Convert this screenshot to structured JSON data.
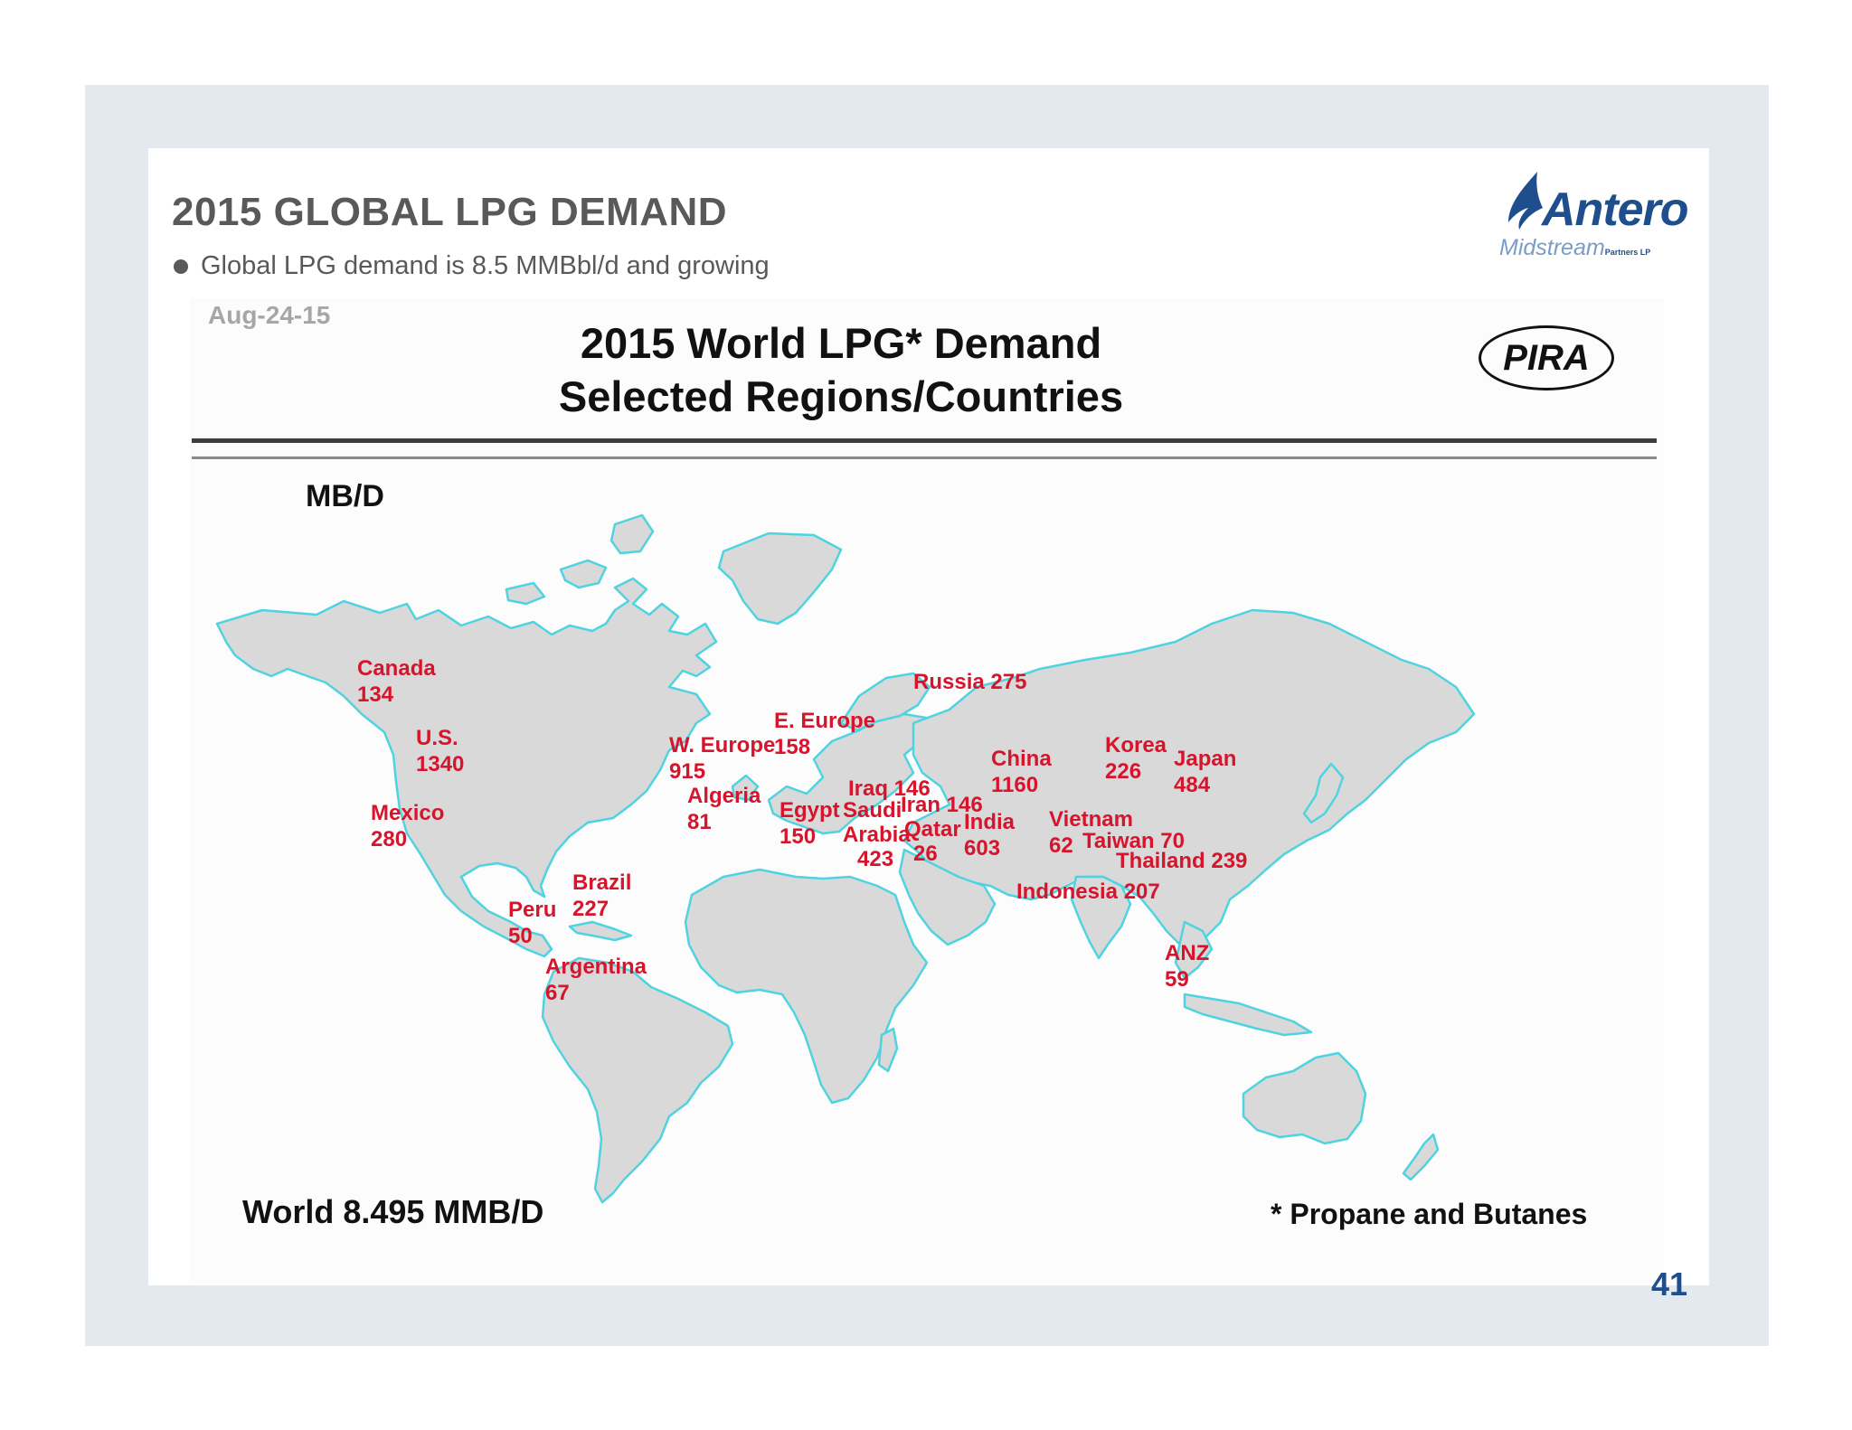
{
  "slide": {
    "title": "2015 GLOBAL LPG DEMAND",
    "bullet": "Global LPG demand is 8.5 MMBbl/d and growing",
    "page_number": "41"
  },
  "logo": {
    "name": "Antero",
    "sub": "Midstream",
    "sub_small": "Partners LP"
  },
  "map": {
    "date": "Aug-24-15",
    "title_line1": "2015 World LPG* Demand",
    "title_line2": "Selected Regions/Countries",
    "source_badge": "PIRA",
    "unit": "MB/D",
    "world_total": "World 8.495 MMB/D",
    "footnote": "* Propane and Butanes",
    "label_color": "#d6152d",
    "land_color": "#d9d9d9",
    "coast_color": "#4fd3e0",
    "labels": [
      {
        "id": "canada",
        "line1": "Canada",
        "line2": "134"
      },
      {
        "id": "us",
        "line1": "U.S.",
        "line2": "1340"
      },
      {
        "id": "mexico",
        "line1": "Mexico",
        "line2": "280"
      },
      {
        "id": "brazil",
        "line1": "Brazil",
        "line2": "227"
      },
      {
        "id": "peru",
        "line1": "Peru",
        "line2": "50"
      },
      {
        "id": "argentina",
        "line1": "Argentina",
        "line2": "67"
      },
      {
        "id": "weurope",
        "line1": "W. Europe",
        "line2": "915"
      },
      {
        "id": "eeurope",
        "line1": "E. Europe",
        "line2": "158"
      },
      {
        "id": "algeria",
        "line1": "Algeria",
        "line2": "81"
      },
      {
        "id": "egypt",
        "line1": "Egypt",
        "line2": "150"
      },
      {
        "id": "iraq",
        "line1": "Iraq 146",
        "line2": ""
      },
      {
        "id": "saudi",
        "line1": "Saudi",
        "line2": "Arabia",
        "line3": "423"
      },
      {
        "id": "iran",
        "line1": "Iran 146",
        "line2": ""
      },
      {
        "id": "qatar",
        "line1": "Qatar",
        "line2": "26"
      },
      {
        "id": "india",
        "line1": "India",
        "line2": "603"
      },
      {
        "id": "russia",
        "line1": "Russia 275",
        "line2": ""
      },
      {
        "id": "china",
        "line1": "China",
        "line2": "1160"
      },
      {
        "id": "korea",
        "line1": "Korea",
        "line2": "226"
      },
      {
        "id": "japan",
        "line1": "Japan",
        "line2": "484"
      },
      {
        "id": "vietnam",
        "line1": "Vietnam",
        "line2": "62"
      },
      {
        "id": "taiwan",
        "line1": "Taiwan 70",
        "line2": ""
      },
      {
        "id": "thailand",
        "line1": "Thailand 239",
        "line2": ""
      },
      {
        "id": "indonesia",
        "line1": "Indonesia 207",
        "line2": ""
      },
      {
        "id": "anz",
        "line1": "ANZ",
        "line2": "59"
      }
    ]
  }
}
